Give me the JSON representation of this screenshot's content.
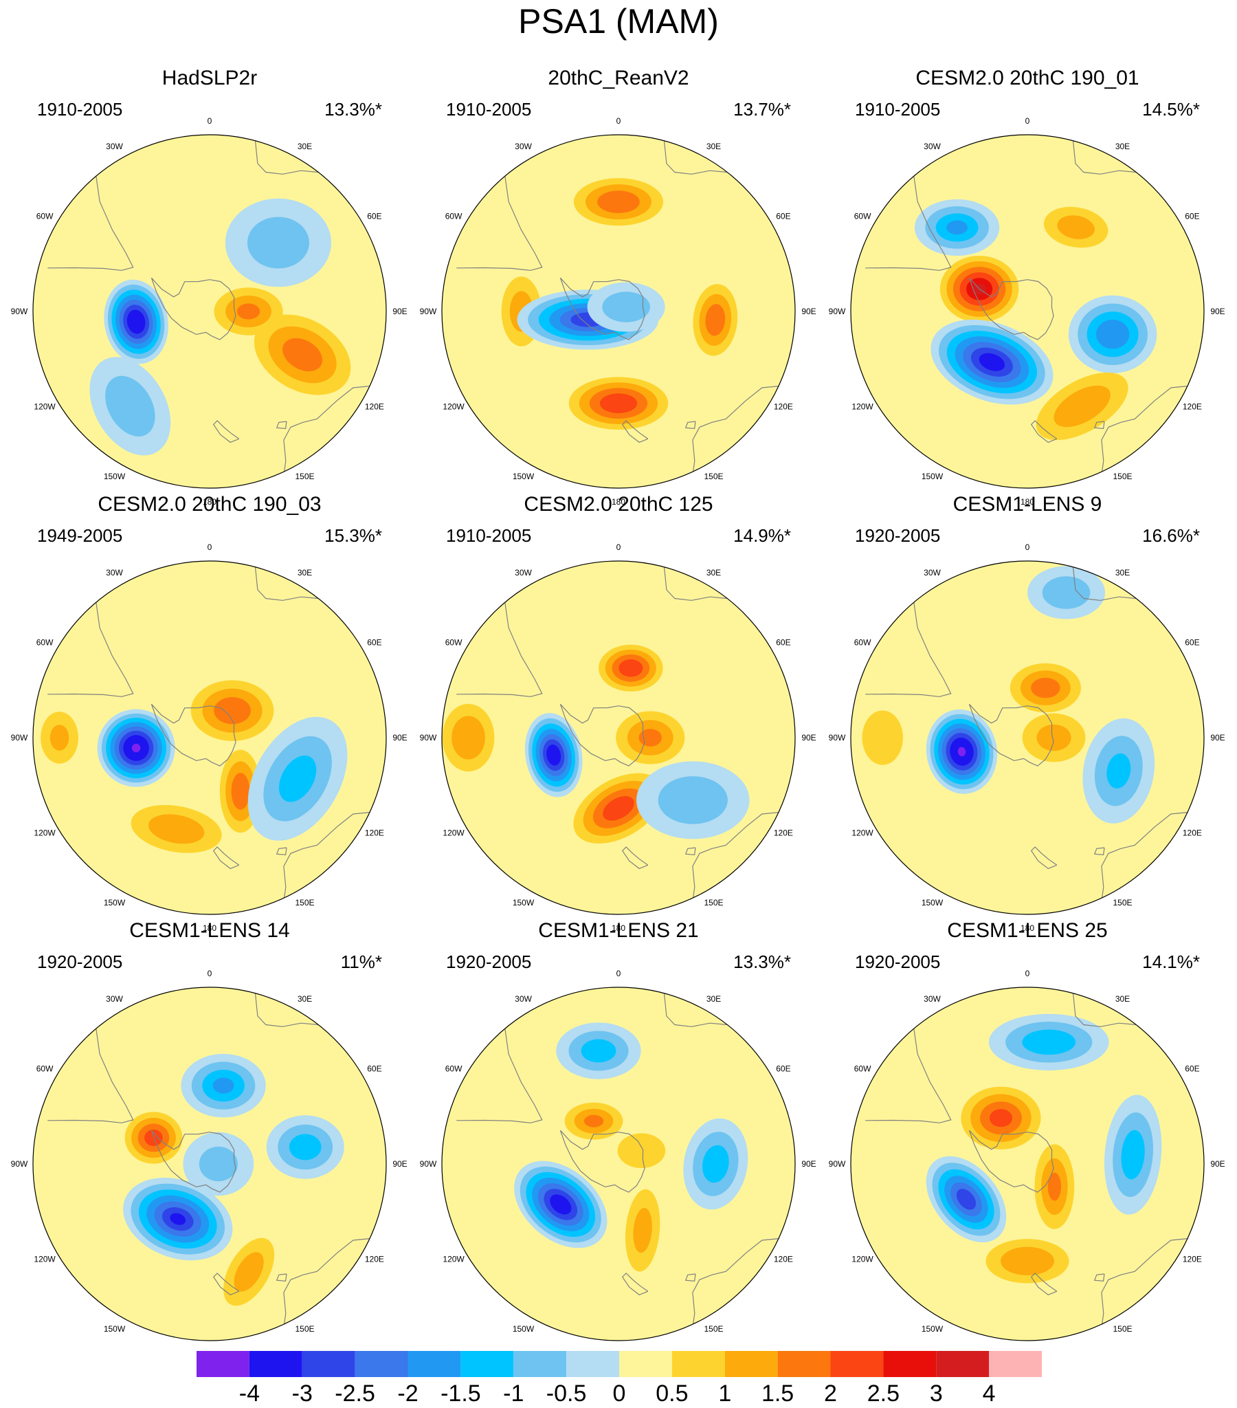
{
  "title": "PSA1 (MAM)",
  "colors": {
    "below_m4": "#7f22ee",
    "m4_m3": "#1e14f0",
    "m3_m25": "#2f45e8",
    "m25_m2": "#3a78ec",
    "m2_m15": "#2199f2",
    "m15_m1": "#00c4ff",
    "m1_m05": "#6ec3f0",
    "m05_0": "#b4dcf2",
    "0_05": "#fef59a",
    "05_1": "#fdd42f",
    "1_15": "#fdaa0c",
    "15_2": "#fc780e",
    "2_25": "#fb4512",
    "25_3": "#e80f0a",
    "3_4": "#d41d1e",
    "above_4": "#fdb3b3",
    "coast": "#808080"
  },
  "colorbar": {
    "labels": [
      "-4",
      "-3",
      "-2.5",
      "-2",
      "-1.5",
      "-1",
      "-0.5",
      "0",
      "0.5",
      "1",
      "1.5",
      "2",
      "2.5",
      "3",
      "4"
    ],
    "colors": [
      "#7f22ee",
      "#1e14f0",
      "#2f45e8",
      "#3a78ec",
      "#2199f2",
      "#00c4ff",
      "#6ec3f0",
      "#b4dcf2",
      "#fef59a",
      "#fdd42f",
      "#fdaa0c",
      "#fc780e",
      "#fb4512",
      "#e80f0a",
      "#d41d1e",
      "#fdb3b3"
    ]
  },
  "lon_labels": [
    "0",
    "30E",
    "60E",
    "90E",
    "120E",
    "150E",
    "180",
    "150W",
    "120W",
    "90W",
    "60W",
    "30W"
  ],
  "panels": [
    {
      "title": "HadSLP2r",
      "period": "1910-2005",
      "variance": "13.3%*",
      "features": [
        {
          "lon": 115,
          "r": 0.58,
          "a": 0.38,
          "b": 0.26,
          "rot": 30,
          "v": 1.7
        },
        {
          "lon": 90,
          "r": 0.22,
          "a": 0.26,
          "b": 0.18,
          "rot": 0,
          "v": 1.5
        },
        {
          "lon": 262,
          "r": 0.42,
          "a": 0.24,
          "b": 0.18,
          "rot": 80,
          "v": -3.7
        },
        {
          "lon": 220,
          "r": 0.7,
          "a": 0.3,
          "b": 0.2,
          "rot": 60,
          "v": -0.8
        },
        {
          "lon": 45,
          "r": 0.55,
          "a": 0.3,
          "b": 0.25,
          "rot": 0,
          "v": -0.7
        }
      ]
    },
    {
      "title": "20thC_ReanV2",
      "period": "1910-2005",
      "variance": "13.7%*",
      "features": [
        {
          "lon": 0,
          "r": 0.62,
          "a": 0.32,
          "b": 0.17,
          "rot": 0,
          "v": 1.9
        },
        {
          "lon": 95,
          "r": 0.55,
          "a": 0.26,
          "b": 0.16,
          "rot": 95,
          "v": 1.8
        },
        {
          "lon": 180,
          "r": 0.52,
          "a": 0.34,
          "b": 0.18,
          "rot": 0,
          "v": 2.4
        },
        {
          "lon": 270,
          "r": 0.55,
          "a": 0.28,
          "b": 0.16,
          "rot": 90,
          "v": 1.2
        },
        {
          "lon": 255,
          "r": 0.18,
          "a": 0.4,
          "b": 0.17,
          "rot": 0,
          "v": -2.8
        },
        {
          "lon": 60,
          "r": 0.05,
          "a": 0.22,
          "b": 0.14,
          "rot": 0,
          "v": -0.8
        }
      ]
    },
    {
      "title": "CESM2.0 20thC 190_01",
      "period": "1910-2005",
      "variance": "14.5%*",
      "features": [
        {
          "lon": 295,
          "r": 0.3,
          "a": 0.26,
          "b": 0.22,
          "rot": 0,
          "v": 3.0
        },
        {
          "lon": 320,
          "r": 0.62,
          "a": 0.24,
          "b": 0.16,
          "rot": 0,
          "v": -1.5
        },
        {
          "lon": 30,
          "r": 0.55,
          "a": 0.26,
          "b": 0.16,
          "rot": 10,
          "v": 1.2
        },
        {
          "lon": 105,
          "r": 0.5,
          "a": 0.25,
          "b": 0.22,
          "rot": 0,
          "v": -1.9
        },
        {
          "lon": 215,
          "r": 0.35,
          "a": 0.36,
          "b": 0.22,
          "rot": 20,
          "v": -3.3
        },
        {
          "lon": 150,
          "r": 0.62,
          "a": 0.4,
          "b": 0.2,
          "rot": 150,
          "v": 1.3
        }
      ]
    },
    {
      "title": "CESM2.0 20thC 190_03",
      "period": "1949-2005",
      "variance": "15.3%*",
      "features": [
        {
          "lon": 40,
          "r": 0.2,
          "a": 0.3,
          "b": 0.22,
          "rot": 0,
          "v": 1.8
        },
        {
          "lon": 150,
          "r": 0.35,
          "a": 0.3,
          "b": 0.15,
          "rot": 90,
          "v": 1.8
        },
        {
          "lon": 200,
          "r": 0.55,
          "a": 0.36,
          "b": 0.18,
          "rot": 10,
          "v": 1.3
        },
        {
          "lon": 262,
          "r": 0.42,
          "a": 0.22,
          "b": 0.22,
          "rot": 0,
          "v": -4.0
        },
        {
          "lon": 270,
          "r": 0.85,
          "a": 0.22,
          "b": 0.16,
          "rot": 90,
          "v": 1.0
        },
        {
          "lon": 115,
          "r": 0.55,
          "a": 0.38,
          "b": 0.24,
          "rot": 120,
          "v": -1.1
        }
      ]
    },
    {
      "title": "CESM2.0 20thC 125",
      "period": "1910-2005",
      "variance": "14.9%*",
      "features": [
        {
          "lon": 10,
          "r": 0.4,
          "a": 0.22,
          "b": 0.16,
          "rot": 0,
          "v": 2.4
        },
        {
          "lon": 90,
          "r": 0.18,
          "a": 0.26,
          "b": 0.2,
          "rot": 0,
          "v": 1.5
        },
        {
          "lon": 180,
          "r": 0.4,
          "a": 0.34,
          "b": 0.2,
          "rot": 150,
          "v": 2.3
        },
        {
          "lon": 255,
          "r": 0.38,
          "a": 0.24,
          "b": 0.16,
          "rot": 80,
          "v": -3.5
        },
        {
          "lon": 270,
          "r": 0.85,
          "a": 0.26,
          "b": 0.2,
          "rot": 90,
          "v": 1.4
        },
        {
          "lon": 130,
          "r": 0.55,
          "a": 0.32,
          "b": 0.22,
          "rot": 0,
          "v": -0.8
        }
      ]
    },
    {
      "title": "CESM1-LENS 9",
      "period": "1920-2005",
      "variance": "16.6%*",
      "features": [
        {
          "lon": 20,
          "r": 0.3,
          "a": 0.26,
          "b": 0.18,
          "rot": 0,
          "v": 1.7
        },
        {
          "lon": 90,
          "r": 0.15,
          "a": 0.26,
          "b": 0.2,
          "rot": 0,
          "v": 1.1
        },
        {
          "lon": 258,
          "r": 0.38,
          "a": 0.24,
          "b": 0.2,
          "rot": 80,
          "v": -4.0
        },
        {
          "lon": 270,
          "r": 0.82,
          "a": 0.24,
          "b": 0.18,
          "rot": 90,
          "v": 0.9
        },
        {
          "lon": 110,
          "r": 0.55,
          "a": 0.3,
          "b": 0.2,
          "rot": 100,
          "v": -1.0
        },
        {
          "lon": 15,
          "r": 0.85,
          "a": 0.22,
          "b": 0.15,
          "rot": 0,
          "v": -0.8
        }
      ]
    },
    {
      "title": "CESM1-LENS 14",
      "period": "1920-2005",
      "variance": "11%*",
      "features": [
        {
          "lon": 295,
          "r": 0.35,
          "a": 0.2,
          "b": 0.18,
          "rot": 0,
          "v": 2.2
        },
        {
          "lon": 10,
          "r": 0.45,
          "a": 0.24,
          "b": 0.18,
          "rot": 0,
          "v": -1.5
        },
        {
          "lon": 80,
          "r": 0.55,
          "a": 0.22,
          "b": 0.18,
          "rot": 0,
          "v": -1.2
        },
        {
          "lon": 210,
          "r": 0.36,
          "a": 0.32,
          "b": 0.22,
          "rot": 20,
          "v": -3.0
        },
        {
          "lon": 160,
          "r": 0.65,
          "a": 0.3,
          "b": 0.16,
          "rot": 120,
          "v": 1.2
        },
        {
          "lon": 90,
          "r": 0.05,
          "a": 0.2,
          "b": 0.18,
          "rot": 0,
          "v": -0.6
        }
      ]
    },
    {
      "title": "CESM1-LENS 21",
      "period": "1920-2005",
      "variance": "13.3%*",
      "features": [
        {
          "lon": 330,
          "r": 0.28,
          "a": 0.22,
          "b": 0.14,
          "rot": 0,
          "v": 1.5
        },
        {
          "lon": 350,
          "r": 0.65,
          "a": 0.24,
          "b": 0.16,
          "rot": 0,
          "v": -1.2
        },
        {
          "lon": 90,
          "r": 0.55,
          "a": 0.26,
          "b": 0.18,
          "rot": 100,
          "v": -1.2
        },
        {
          "lon": 235,
          "r": 0.4,
          "a": 0.3,
          "b": 0.2,
          "rot": 40,
          "v": -3.4
        },
        {
          "lon": 160,
          "r": 0.4,
          "a": 0.34,
          "b": 0.14,
          "rot": 95,
          "v": 1.1
        },
        {
          "lon": 60,
          "r": 0.15,
          "a": 0.22,
          "b": 0.16,
          "rot": 0,
          "v": 0.8
        }
      ]
    },
    {
      "title": "CESM1-LENS 25",
      "period": "1920-2005",
      "variance": "14.1%*",
      "features": [
        {
          "lon": 330,
          "r": 0.3,
          "a": 0.28,
          "b": 0.22,
          "rot": 0,
          "v": 2.1
        },
        {
          "lon": 130,
          "r": 0.2,
          "a": 0.32,
          "b": 0.15,
          "rot": 90,
          "v": 1.5
        },
        {
          "lon": 10,
          "r": 0.7,
          "a": 0.34,
          "b": 0.16,
          "rot": 0,
          "v": -1.3
        },
        {
          "lon": 85,
          "r": 0.6,
          "a": 0.34,
          "b": 0.16,
          "rot": 95,
          "v": -1.2
        },
        {
          "lon": 240,
          "r": 0.4,
          "a": 0.28,
          "b": 0.18,
          "rot": 50,
          "v": -2.8
        },
        {
          "lon": 180,
          "r": 0.55,
          "a": 0.32,
          "b": 0.17,
          "rot": 0,
          "v": 1.4
        }
      ]
    }
  ]
}
